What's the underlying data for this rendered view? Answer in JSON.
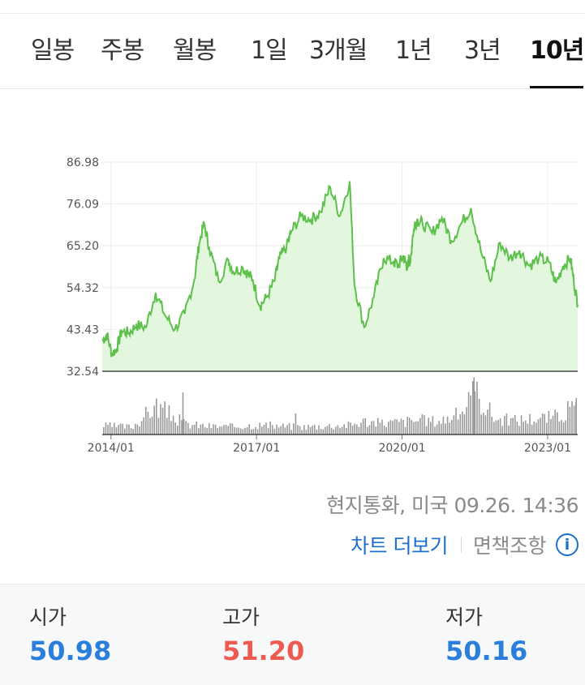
{
  "tabs": [
    {
      "label": "일봉",
      "active": false
    },
    {
      "label": "주봉",
      "active": false
    },
    {
      "label": "월봉",
      "active": false
    },
    {
      "label": "1일",
      "active": false
    },
    {
      "label": "3개월",
      "active": false
    },
    {
      "label": "1년",
      "active": false
    },
    {
      "label": "3년",
      "active": false
    },
    {
      "label": "10년",
      "active": true
    }
  ],
  "chart_data": {
    "type": "area",
    "title": "",
    "xlabel": "",
    "ylabel": "",
    "x_ticks": [
      "2014/01",
      "2017/01",
      "2020/01",
      "2023/01"
    ],
    "y_ticks": [
      86.98,
      76.09,
      65.2,
      54.32,
      43.43,
      32.54
    ],
    "ylim": [
      32.54,
      86.98
    ],
    "xlim": [
      2013.9,
      2023.7
    ],
    "grid": true,
    "line_color": "#5cc04a",
    "fill_color": "#e3f7de",
    "price_series": {
      "x": [
        2013.9,
        2014.0,
        2014.1,
        2014.2,
        2014.3,
        2014.45,
        2014.6,
        2014.8,
        2015.0,
        2015.2,
        2015.4,
        2015.6,
        2015.8,
        2015.9,
        2016.0,
        2016.1,
        2016.3,
        2016.5,
        2016.6,
        2016.8,
        2016.9,
        2017.0,
        2017.15,
        2017.3,
        2017.45,
        2017.55,
        2017.7,
        2017.8,
        2018.0,
        2018.2,
        2018.4,
        2018.6,
        2018.8,
        2019.0,
        2019.1,
        2019.3,
        2019.5,
        2019.7,
        2019.9,
        2020.0,
        2020.1,
        2020.15,
        2020.2,
        2020.22,
        2020.25,
        2020.3,
        2020.35,
        2020.4,
        2020.5,
        2020.7,
        2020.9,
        2021.1,
        2021.3,
        2021.5,
        2021.7,
        2021.9,
        2022.1,
        2022.3,
        2022.5,
        2022.7,
        2022.9,
        2023.1,
        2023.25,
        2023.4,
        2023.55,
        2023.62,
        2023.7
      ],
      "y": [
        40.5,
        42.0,
        37.0,
        38.5,
        43.0,
        42.5,
        44.5,
        44.0,
        53.0,
        47.0,
        43.5,
        47.5,
        56.5,
        66.0,
        71.0,
        65.0,
        56.0,
        61.5,
        58.5,
        59.5,
        58.0,
        56.5,
        49.5,
        52.0,
        56.0,
        62.0,
        65.0,
        69.0,
        73.0,
        72.0,
        74.0,
        80.5,
        73.0,
        82.0,
        55.0,
        44.0,
        52.0,
        62.0,
        61.0,
        60.0,
        62.5,
        61.0,
        59.5,
        62.0,
        60.5,
        68.0,
        71.0,
        72.0,
        71.0,
        68.5,
        72.5,
        66.5,
        71.0,
        75.0,
        64.0,
        56.0,
        66.0,
        62.0,
        64.0,
        60.0,
        62.0,
        61.0,
        55.5,
        60.0,
        62.0,
        56.0,
        50.0
      ]
    },
    "volume_series": {
      "note_relative": true,
      "x": [
        2013.9,
        2014.5,
        2015.0,
        2015.6,
        2016.0,
        2016.5,
        2017.0,
        2017.5,
        2018.0,
        2018.5,
        2019.0,
        2019.3,
        2019.6,
        2020.0,
        2020.4,
        2020.8,
        2021.2,
        2021.6,
        2022.0,
        2022.4,
        2022.8,
        2023.2,
        2023.6
      ],
      "v": [
        18,
        16,
        60,
        22,
        18,
        16,
        20,
        18,
        16,
        18,
        20,
        28,
        24,
        26,
        30,
        28,
        40,
        85,
        32,
        30,
        34,
        36,
        55
      ]
    }
  },
  "meta": {
    "local_time": "현지통화, 미국 09.26. 14:36"
  },
  "links": {
    "chart_more": "차트 더보기",
    "disclaimer": "면책조항",
    "info_icon": "i"
  },
  "prices": [
    {
      "label": "시가",
      "value": "50.98",
      "color": "#2a7fdc"
    },
    {
      "label": "고가",
      "value": "51.20",
      "color": "#ee5a4f"
    },
    {
      "label": "저가",
      "value": "50.16",
      "color": "#2a7fdc"
    }
  ]
}
